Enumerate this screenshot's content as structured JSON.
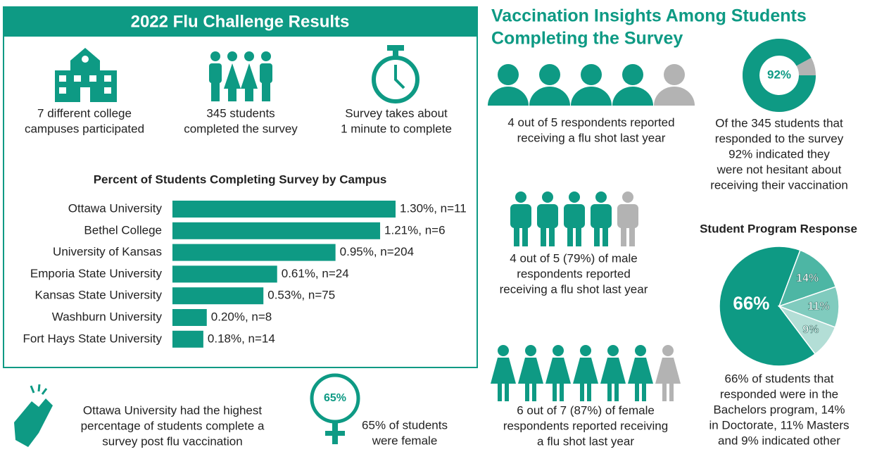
{
  "header": {
    "title": "2022 Flu Challenge Results"
  },
  "stats": [
    {
      "lines": [
        "7 different college",
        "campuses participated"
      ]
    },
    {
      "lines": [
        "345 students",
        "completed the survey"
      ]
    },
    {
      "lines": [
        "Survey takes about",
        "1 minute to complete"
      ]
    }
  ],
  "highlight": {
    "lines": [
      "Ottawa University had the highest",
      "percentage of students complete a",
      "survey post flu vaccination"
    ]
  },
  "female_share": {
    "badge": "65%",
    "lines": [
      "65% of students",
      "were female"
    ]
  },
  "insights": {
    "title_lines": [
      "Vaccination Insights Among Students",
      "Completing the Survey"
    ],
    "respondents": {
      "lines": [
        "4 out of 5 respondents reported",
        "receiving a flu shot last year"
      ]
    },
    "hesitancy": {
      "lines": [
        "Of the 345 students that",
        "responded to the survey",
        "92% indicated they",
        "were not hesitant about",
        "receiving their vaccination"
      ]
    },
    "male": {
      "lines": [
        "4 out of 5 (79%) of male",
        "respondents reported",
        "receiving a flu shot last year"
      ]
    },
    "female": {
      "lines": [
        "6 out of 7 (87%) of female",
        "respondents reported receiving",
        "a flu shot last year"
      ]
    },
    "program": {
      "lines": [
        "66% of students that",
        "responded were in the",
        "Bachelors program, 14%",
        "in Doctorate, 11% Masters",
        "and 9% indicated other"
      ]
    }
  },
  "chart_data": [
    {
      "type": "bar",
      "title": "Percent of Students Completing Survey by Campus",
      "categories": [
        "Ottawa University",
        "Bethel College",
        "University of Kansas",
        "Emporia State University",
        "Kansas State University",
        "Washburn University",
        "Fort Hays State University"
      ],
      "values": [
        1.3,
        1.21,
        0.95,
        0.61,
        0.53,
        0.2,
        0.18
      ],
      "value_labels": [
        "1.30%, n=11",
        "1.21%, n=6",
        "0.95%, n=204",
        "0.61%, n=24",
        "0.53%, n=75",
        "0.20%, n=8",
        "0.18%, n=14"
      ],
      "color": "#0e9a84"
    },
    {
      "type": "pie",
      "title": "Student Program Response",
      "values": [
        66,
        14,
        11,
        9
      ],
      "value_labels": [
        "66%",
        "14%",
        "11%",
        "9%"
      ],
      "colors": [
        "#0e9a84",
        "#4db6a4",
        "#80cbbe",
        "#b3ded6"
      ]
    },
    {
      "type": "donut",
      "values": [
        92
      ],
      "value_labels": [
        "92%"
      ],
      "colors": [
        "#0e9a84"
      ]
    }
  ]
}
